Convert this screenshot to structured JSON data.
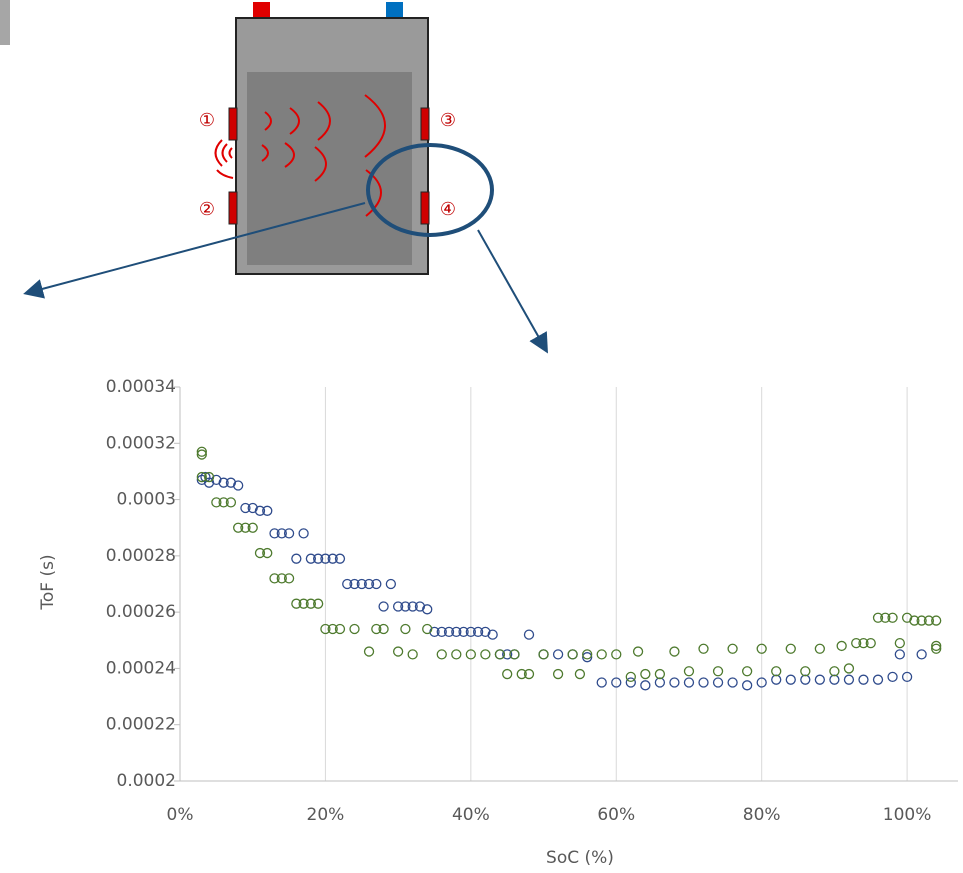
{
  "diagram": {
    "labels": [
      "①",
      "②",
      "③",
      "④"
    ]
  },
  "chart_data": {
    "type": "scatter",
    "x_label": "SoC (%)",
    "y_label": "ToF (s)",
    "xlim": [
      0,
      107
    ],
    "ylim": [
      0.0002,
      0.00034
    ],
    "xticks": [
      {
        "value": 0,
        "label": "0%"
      },
      {
        "value": 20,
        "label": "20%"
      },
      {
        "value": 40,
        "label": "40%"
      },
      {
        "value": 60,
        "label": "60%"
      },
      {
        "value": 80,
        "label": "80%"
      },
      {
        "value": 100,
        "label": "100%"
      }
    ],
    "yticks": [
      0.0002,
      0.00022,
      0.00024,
      0.00026,
      0.00028,
      0.0003,
      0.00032,
      0.00034
    ],
    "grid": "x",
    "series": [
      {
        "color": "#2f4b8c",
        "x": [
          3,
          3.5,
          4,
          5,
          6,
          7,
          8,
          9,
          10,
          11,
          12,
          13,
          14,
          15,
          16,
          17,
          18,
          19,
          20,
          21,
          22,
          23,
          24,
          25,
          26,
          27,
          28,
          29,
          30,
          31,
          32,
          33,
          34,
          35,
          36,
          37,
          38,
          39,
          40,
          41,
          42,
          43,
          44,
          45,
          46,
          48,
          50,
          52,
          54,
          56,
          58,
          60,
          62,
          64,
          66,
          68,
          70,
          72,
          74,
          76,
          78,
          80,
          82,
          84,
          86,
          88,
          90,
          92,
          94,
          96,
          98,
          99,
          100,
          102
        ],
        "values": [
          0.000307,
          0.000308,
          0.000306,
          0.000307,
          0.000306,
          0.000306,
          0.000305,
          0.000297,
          0.000297,
          0.000296,
          0.000296,
          0.000288,
          0.000288,
          0.000288,
          0.000279,
          0.000288,
          0.000279,
          0.000279,
          0.000279,
          0.000279,
          0.000279,
          0.00027,
          0.00027,
          0.00027,
          0.00027,
          0.00027,
          0.000262,
          0.00027,
          0.000262,
          0.000262,
          0.000262,
          0.000262,
          0.000261,
          0.000253,
          0.000253,
          0.000253,
          0.000253,
          0.000253,
          0.000253,
          0.000253,
          0.000253,
          0.000252,
          0.000245,
          0.000245,
          0.000245,
          0.000252,
          0.000245,
          0.000245,
          0.000245,
          0.000244,
          0.000235,
          0.000235,
          0.000235,
          0.000234,
          0.000235,
          0.000235,
          0.000235,
          0.000235,
          0.000235,
          0.000235,
          0.000234,
          0.000235,
          0.000236,
          0.000236,
          0.000236,
          0.000236,
          0.000236,
          0.000236,
          0.000236,
          0.000236,
          0.000237,
          0.000245,
          0.000237,
          0.000245
        ]
      },
      {
        "color": "#4e7a2e",
        "x": [
          3,
          3,
          3,
          4,
          5,
          6,
          7,
          8,
          9,
          10,
          11,
          12,
          13,
          14,
          15,
          16,
          17,
          18,
          19,
          20,
          21,
          22,
          24,
          26,
          27,
          28,
          30,
          31,
          32,
          34,
          36,
          38,
          40,
          42,
          44,
          45,
          46,
          47,
          48,
          50,
          52,
          54,
          55,
          56,
          58,
          60,
          62,
          63,
          64,
          66,
          68,
          70,
          72,
          74,
          76,
          78,
          80,
          82,
          84,
          86,
          88,
          90,
          91,
          92,
          93,
          94,
          95,
          96,
          97,
          98,
          99,
          100,
          101,
          102,
          103,
          104,
          104,
          104
        ],
        "values": [
          0.000317,
          0.000316,
          0.000308,
          0.000308,
          0.000299,
          0.000299,
          0.000299,
          0.00029,
          0.00029,
          0.00029,
          0.000281,
          0.000281,
          0.000272,
          0.000272,
          0.000272,
          0.000263,
          0.000263,
          0.000263,
          0.000263,
          0.000254,
          0.000254,
          0.000254,
          0.000254,
          0.000246,
          0.000254,
          0.000254,
          0.000246,
          0.000254,
          0.000245,
          0.000254,
          0.000245,
          0.000245,
          0.000245,
          0.000245,
          0.000245,
          0.000238,
          0.000245,
          0.000238,
          0.000238,
          0.000245,
          0.000238,
          0.000245,
          0.000238,
          0.000245,
          0.000245,
          0.000245,
          0.000237,
          0.000246,
          0.000238,
          0.000238,
          0.000246,
          0.000239,
          0.000247,
          0.000239,
          0.000247,
          0.000239,
          0.000247,
          0.000239,
          0.000247,
          0.000239,
          0.000247,
          0.000239,
          0.000248,
          0.00024,
          0.000249,
          0.000249,
          0.000249,
          0.000258,
          0.000258,
          0.000258,
          0.000249,
          0.000258,
          0.000257,
          0.000257,
          0.000257,
          0.000257,
          0.000248,
          0.000247
        ]
      }
    ]
  }
}
